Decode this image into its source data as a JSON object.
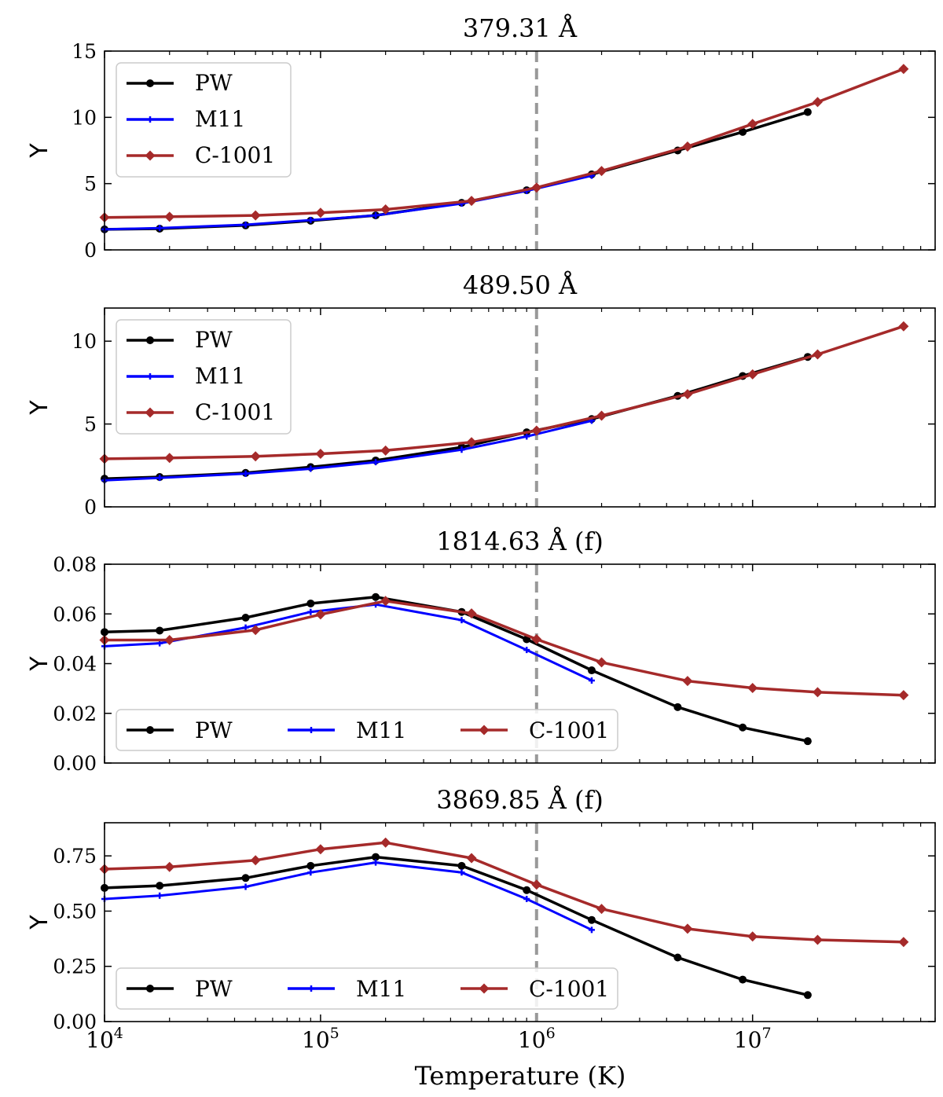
{
  "colors": {
    "PW": "#000000",
    "M11": "#0000ff",
    "C-1001": "#a52a2a",
    "ref_line": "#999999"
  },
  "xlabel": "Temperature (K)",
  "x_ticks": [
    {
      "value": 10000,
      "base": "10",
      "exp": "4"
    },
    {
      "value": 100000,
      "base": "10",
      "exp": "5"
    },
    {
      "value": 1000000,
      "base": "10",
      "exp": "6"
    },
    {
      "value": 10000000,
      "base": "10",
      "exp": "7"
    }
  ],
  "xlim": [
    10000,
    70000000
  ],
  "reference_line_x": 1000000,
  "chart_data": [
    {
      "type": "line",
      "title": "379.31 Å",
      "ylabel": "Y",
      "ylim": [
        0,
        15
      ],
      "yticks": [
        "0",
        "5",
        "10",
        "15"
      ],
      "legend_position": "upper-left",
      "legend_layout": "column",
      "series": [
        {
          "name": "PW",
          "marker": "circle",
          "x": [
            10000,
            18000,
            45000,
            90000,
            180000,
            450000,
            900000,
            1800000,
            4500000,
            9000000,
            18000000
          ],
          "y": [
            1.55,
            1.6,
            1.85,
            2.2,
            2.6,
            3.55,
            4.5,
            5.7,
            7.5,
            8.9,
            10.4
          ]
        },
        {
          "name": "M11",
          "marker": "star",
          "x": [
            10000,
            18000,
            45000,
            90000,
            180000,
            450000,
            900000,
            1800000
          ],
          "y": [
            1.55,
            1.65,
            1.9,
            2.25,
            2.6,
            3.5,
            4.45,
            5.6
          ]
        },
        {
          "name": "C-1001",
          "marker": "diamond",
          "x": [
            10000,
            20000,
            50000,
            100000,
            200000,
            500000,
            1000000,
            2000000,
            5000000,
            10000000,
            20000000,
            50000000
          ],
          "y": [
            2.45,
            2.5,
            2.6,
            2.8,
            3.05,
            3.7,
            4.7,
            5.95,
            7.8,
            9.5,
            11.15,
            13.65
          ]
        }
      ]
    },
    {
      "type": "line",
      "title": "489.50 Å",
      "ylabel": "Y",
      "ylim": [
        0,
        12
      ],
      "yticks": [
        "0",
        "5",
        "10"
      ],
      "legend_position": "upper-left",
      "legend_layout": "column",
      "series": [
        {
          "name": "PW",
          "marker": "circle",
          "x": [
            10000,
            18000,
            45000,
            90000,
            180000,
            450000,
            900000,
            1800000,
            4500000,
            9000000,
            18000000
          ],
          "y": [
            1.7,
            1.8,
            2.05,
            2.4,
            2.8,
            3.6,
            4.5,
            5.3,
            6.7,
            7.9,
            9.05
          ]
        },
        {
          "name": "M11",
          "marker": "star",
          "x": [
            10000,
            18000,
            45000,
            90000,
            180000,
            450000,
            900000,
            1800000
          ],
          "y": [
            1.6,
            1.75,
            2.0,
            2.3,
            2.7,
            3.45,
            4.25,
            5.2
          ]
        },
        {
          "name": "C-1001",
          "marker": "diamond",
          "x": [
            10000,
            20000,
            50000,
            100000,
            200000,
            500000,
            1000000,
            2000000,
            5000000,
            10000000,
            20000000,
            50000000
          ],
          "y": [
            2.9,
            2.95,
            3.05,
            3.2,
            3.4,
            3.9,
            4.6,
            5.5,
            6.8,
            8.0,
            9.2,
            10.9
          ]
        }
      ]
    },
    {
      "type": "line",
      "title": "1814.63 Å (f)",
      "ylabel": "Y",
      "ylim": [
        0,
        0.08
      ],
      "yticks": [
        "0.00",
        "0.02",
        "0.04",
        "0.06",
        "0.08"
      ],
      "legend_position": "lower-left",
      "legend_layout": "row",
      "series": [
        {
          "name": "PW",
          "marker": "circle",
          "x": [
            10000,
            18000,
            45000,
            90000,
            180000,
            450000,
            900000,
            1800000,
            4500000,
            9000000,
            18000000
          ],
          "y": [
            0.0527,
            0.0533,
            0.0585,
            0.0642,
            0.0668,
            0.0608,
            0.0498,
            0.0373,
            0.0225,
            0.0143,
            0.0088
          ]
        },
        {
          "name": "M11",
          "marker": "star",
          "x": [
            10000,
            18000,
            45000,
            90000,
            180000,
            450000,
            900000,
            1800000
          ],
          "y": [
            0.047,
            0.0482,
            0.0545,
            0.0608,
            0.0638,
            0.0575,
            0.0455,
            0.0332
          ]
        },
        {
          "name": "C-1001",
          "marker": "diamond",
          "x": [
            10000,
            20000,
            50000,
            100000,
            200000,
            500000,
            1000000,
            2000000,
            5000000,
            10000000,
            20000000,
            50000000
          ],
          "y": [
            0.0495,
            0.0495,
            0.0535,
            0.0598,
            0.0652,
            0.0602,
            0.0498,
            0.0405,
            0.033,
            0.0302,
            0.0285,
            0.0273
          ]
        }
      ]
    },
    {
      "type": "line",
      "title": "3869.85 Å (f)",
      "ylabel": "Y",
      "ylim": [
        0,
        0.9
      ],
      "yticks": [
        "0.00",
        "0.25",
        "0.50",
        "0.75"
      ],
      "legend_position": "lower-left",
      "legend_layout": "row",
      "series": [
        {
          "name": "PW",
          "marker": "circle",
          "x": [
            10000,
            18000,
            45000,
            90000,
            180000,
            450000,
            900000,
            1800000,
            4500000,
            9000000,
            18000000
          ],
          "y": [
            0.605,
            0.615,
            0.65,
            0.705,
            0.745,
            0.705,
            0.595,
            0.46,
            0.29,
            0.19,
            0.12
          ]
        },
        {
          "name": "M11",
          "marker": "star",
          "x": [
            10000,
            18000,
            45000,
            90000,
            180000,
            450000,
            900000,
            1800000
          ],
          "y": [
            0.555,
            0.57,
            0.61,
            0.675,
            0.72,
            0.675,
            0.555,
            0.415
          ]
        },
        {
          "name": "C-1001",
          "marker": "diamond",
          "x": [
            10000,
            20000,
            50000,
            100000,
            200000,
            500000,
            1000000,
            2000000,
            5000000,
            10000000,
            20000000,
            50000000
          ],
          "y": [
            0.69,
            0.7,
            0.73,
            0.78,
            0.81,
            0.74,
            0.62,
            0.51,
            0.42,
            0.385,
            0.37,
            0.36
          ]
        }
      ]
    }
  ]
}
